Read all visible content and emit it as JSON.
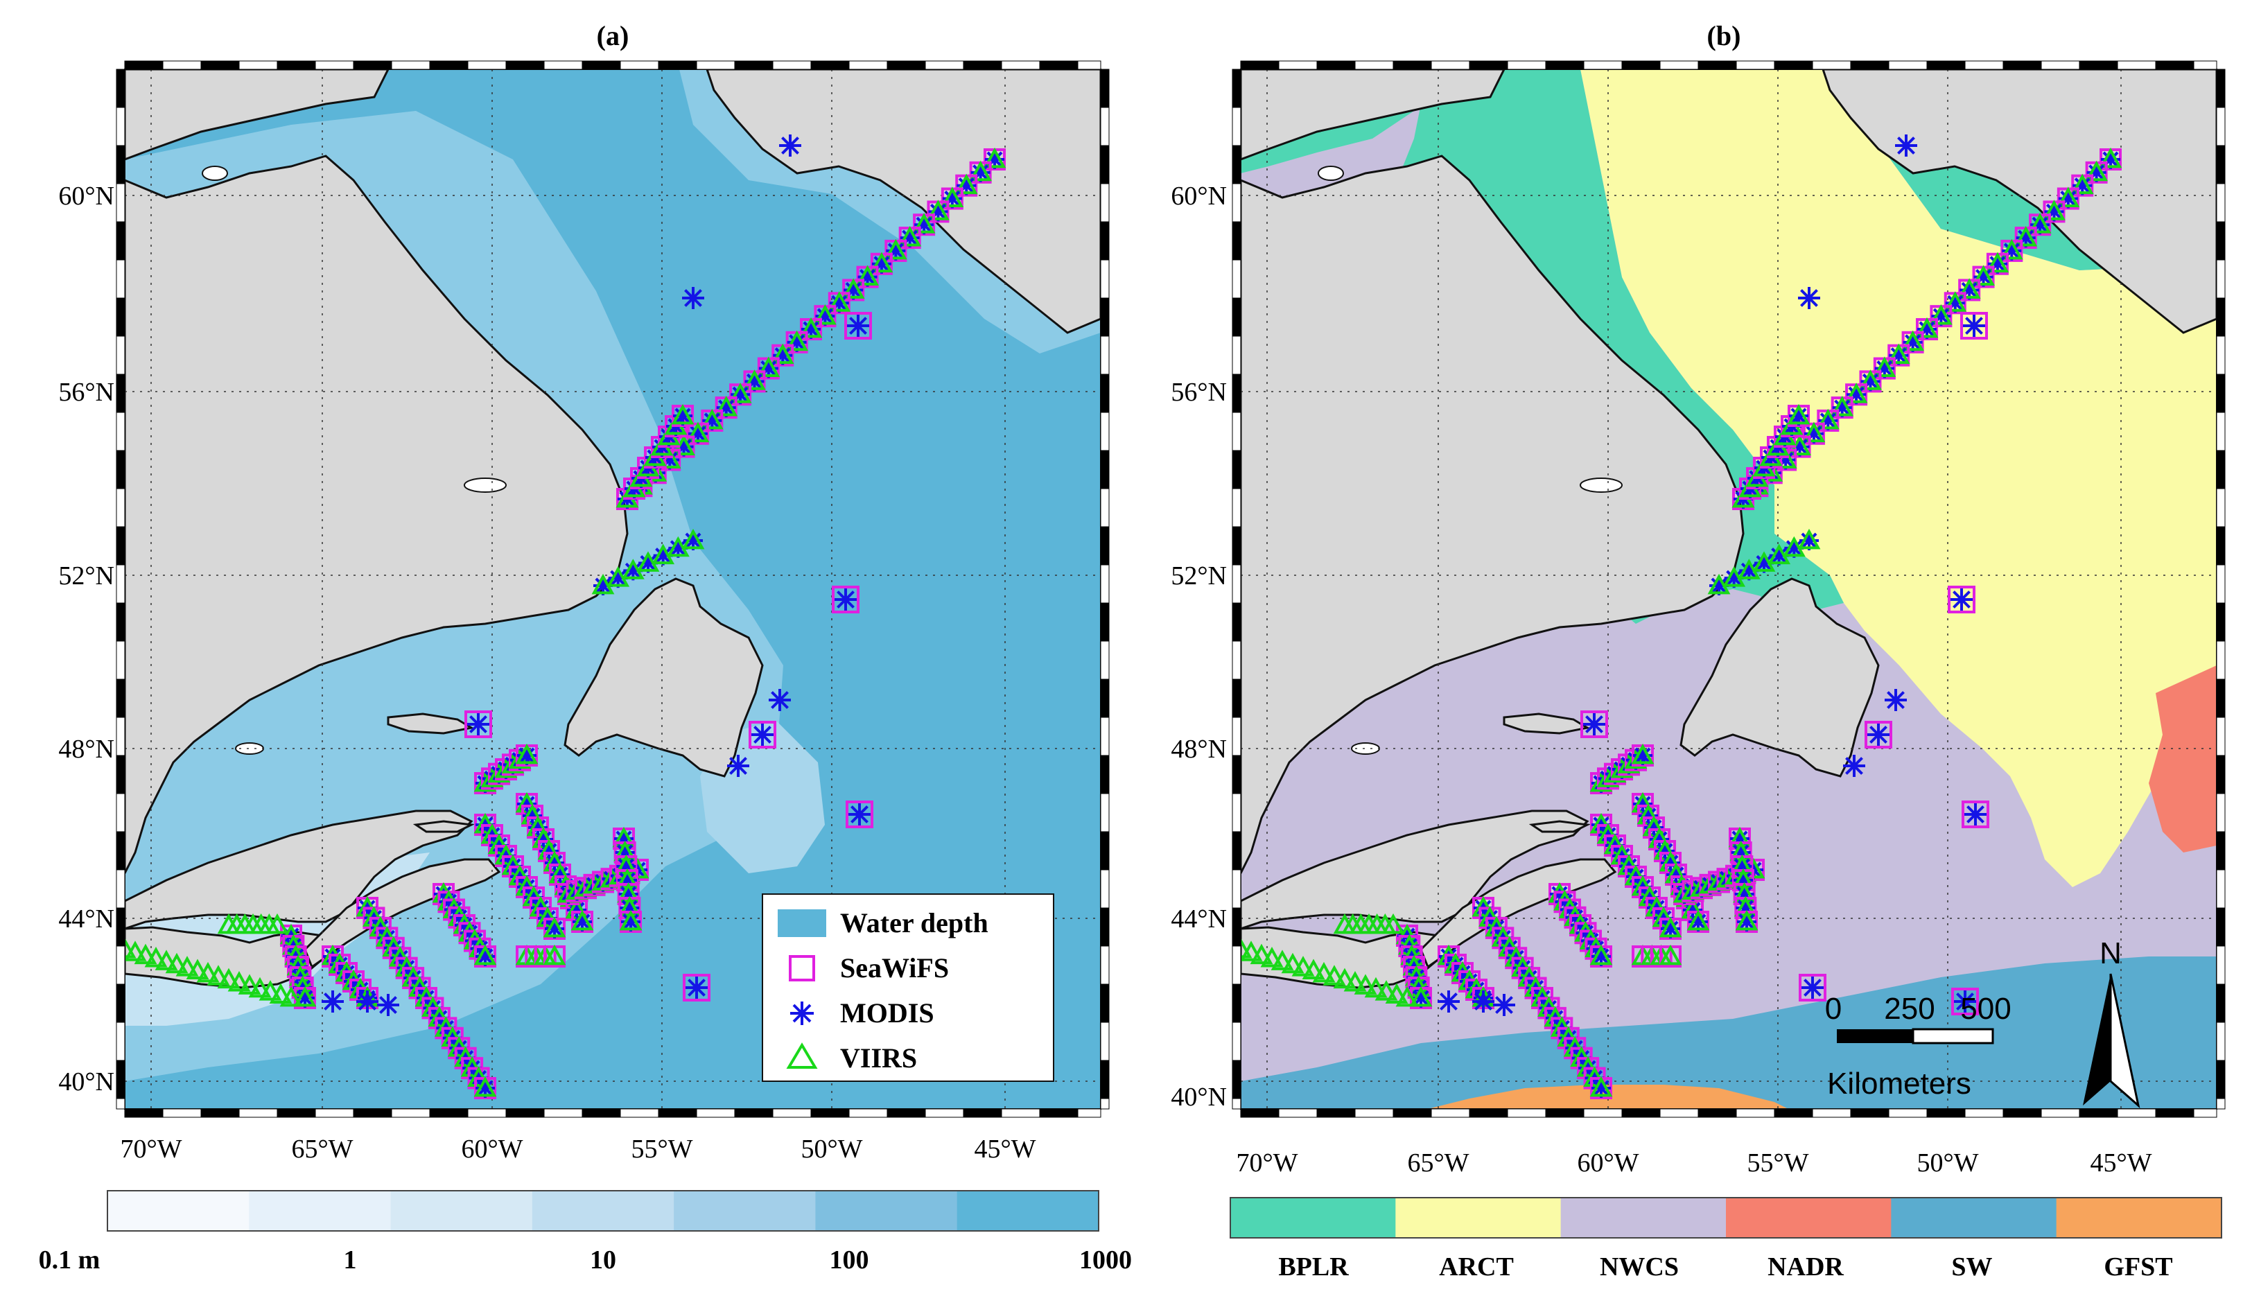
{
  "panels": [
    {
      "id": "a",
      "label": "(a)",
      "lat_ticks": [
        "60°N",
        "56°N",
        "52°N",
        "48°N",
        "44°N",
        "40°N"
      ],
      "lon_ticks": [
        "70°W",
        "65°W",
        "60°W",
        "55°W",
        "50°W",
        "45°W"
      ],
      "legend": [
        {
          "symbol": "patch",
          "color": "#5cb5d8",
          "label": "Water depth"
        },
        {
          "symbol": "square",
          "color": "#e020e0",
          "label": "SeaWiFS"
        },
        {
          "symbol": "star",
          "color": "#1414e6",
          "label": "MODIS"
        },
        {
          "symbol": "triangle",
          "color": "#19d819",
          "label": "VIIRS"
        }
      ],
      "colorbar": {
        "labels": [
          "0.1 m",
          "1",
          "10",
          "100",
          "1000"
        ],
        "colors": [
          "#f5f9fd",
          "#e6f1fa",
          "#d6e9f5",
          "#bfddf0",
          "#a3cfe9",
          "#7fbfe0",
          "#5cb5d8"
        ]
      }
    },
    {
      "id": "b",
      "label": "(b)",
      "lat_ticks": [
        "60°N",
        "56°N",
        "52°N",
        "48°N",
        "44°N",
        "40°N"
      ],
      "lon_ticks": [
        "70°W",
        "65°W",
        "60°W",
        "55°W",
        "50°W",
        "45°W"
      ],
      "scale_bar": {
        "ticks": [
          "0",
          "250",
          "500"
        ],
        "unit": "Kilometers"
      },
      "north_arrow": "N",
      "colorbar": {
        "labels": [
          "BPLR",
          "ARCT",
          "NWCS",
          "NADR",
          "SW",
          "GFST"
        ],
        "colors": [
          "#4fd6b3",
          "#fafba7",
          "#c7bfdd",
          "#f5806f",
          "#5aaccf",
          "#f7a45c"
        ]
      }
    }
  ],
  "colors": {
    "land": "#d8d8d8",
    "coast": "#111111",
    "seawifs": "#e020e0",
    "modis": "#1414e6",
    "viirs": "#19d819",
    "ocean_deep": "#5cb5d8",
    "ocean_shelf": "#8ccbe6",
    "ocean_shallow": "#c5e3f3"
  }
}
